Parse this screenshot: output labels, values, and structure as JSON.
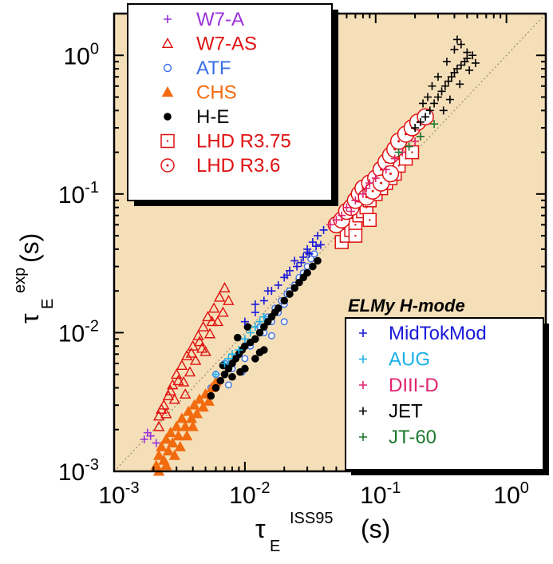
{
  "chart_data": {
    "type": "scatter",
    "title": "",
    "xlabel": {
      "main": "τ",
      "sub": "E",
      "sup": "ISS95",
      "unit": "(s)"
    },
    "ylabel": {
      "main": "τ",
      "sub": "E",
      "sup": "exp",
      "unit": "(s)"
    },
    "xscale": "log",
    "yscale": "log",
    "xlim": [
      0.001,
      2
    ],
    "ylim": [
      0.001,
      2
    ],
    "x_ticks": [
      {
        "value": 0.001,
        "base": "10",
        "exp": "-3"
      },
      {
        "value": 0.01,
        "base": "10",
        "exp": "-2"
      },
      {
        "value": 0.1,
        "base": "10",
        "exp": "-1"
      },
      {
        "value": 1,
        "base": "10",
        "exp": "0"
      }
    ],
    "y_ticks": [
      {
        "value": 0.001,
        "base": "10",
        "exp": "-3"
      },
      {
        "value": 0.01,
        "base": "10",
        "exp": "-2"
      },
      {
        "value": 0.1,
        "base": "10",
        "exp": "-1"
      },
      {
        "value": 1,
        "base": "10",
        "exp": "0"
      }
    ],
    "background_color": "#f5dfb8",
    "reference_line": "y = x (dotted)",
    "annotation": "ELMy H-mode",
    "legend_stellarator": {
      "placement": "top-left",
      "entries": [
        {
          "name": "W7-A",
          "marker": "plus",
          "color": "#9b30d9"
        },
        {
          "name": "W7-AS",
          "marker": "triangle-open",
          "color": "#e01010"
        },
        {
          "name": "ATF",
          "marker": "circle-open",
          "color": "#3a6fe8"
        },
        {
          "name": "CHS",
          "marker": "triangle-filled",
          "color": "#f26b0f"
        },
        {
          "name": "H-E",
          "marker": "circle-filled",
          "color": "#000000"
        },
        {
          "name": "LHD R3.75",
          "marker": "square-dot",
          "color": "#e01010"
        },
        {
          "name": "LHD R3.6",
          "marker": "circle-dot",
          "color": "#e01010"
        }
      ]
    },
    "legend_tokamak": {
      "placement": "bottom-right",
      "entries": [
        {
          "name": "MidTokMod",
          "marker": "plus",
          "color": "#1a1adb"
        },
        {
          "name": "AUG",
          "marker": "plus",
          "color": "#1ab0e8"
        },
        {
          "name": "DIII-D",
          "marker": "plus",
          "color": "#e0246e"
        },
        {
          "name": "JET",
          "marker": "plus",
          "color": "#000000"
        },
        {
          "name": "JT-60",
          "marker": "plus",
          "color": "#1e7a2e"
        }
      ]
    },
    "series": [
      {
        "name": "W7-A",
        "marker": "plus",
        "color": "#9b30d9",
        "points": [
          [
            0.0017,
            0.0017
          ],
          [
            0.0019,
            0.0018
          ],
          [
            0.0021,
            0.0016
          ],
          [
            0.0018,
            0.0019
          ]
        ]
      },
      {
        "name": "W7-AS",
        "marker": "triangle-open",
        "color": "#e01010",
        "points": [
          [
            0.0022,
            0.0025
          ],
          [
            0.0024,
            0.003
          ],
          [
            0.0026,
            0.0035
          ],
          [
            0.0028,
            0.0042
          ],
          [
            0.003,
            0.005
          ],
          [
            0.0033,
            0.0058
          ],
          [
            0.0036,
            0.0068
          ],
          [
            0.004,
            0.008
          ],
          [
            0.0044,
            0.0095
          ],
          [
            0.0048,
            0.011
          ],
          [
            0.0052,
            0.013
          ],
          [
            0.0058,
            0.015
          ],
          [
            0.0064,
            0.018
          ],
          [
            0.007,
            0.021
          ],
          [
            0.0022,
            0.0021
          ],
          [
            0.0025,
            0.0026
          ],
          [
            0.0029,
            0.0033
          ],
          [
            0.0034,
            0.0044
          ],
          [
            0.0038,
            0.0052
          ],
          [
            0.0042,
            0.0063
          ],
          [
            0.0047,
            0.0077
          ],
          [
            0.0054,
            0.0098
          ],
          [
            0.0062,
            0.012
          ],
          [
            0.0068,
            0.014
          ],
          [
            0.0023,
            0.0028
          ],
          [
            0.0027,
            0.0038
          ],
          [
            0.0031,
            0.0045
          ],
          [
            0.0035,
            0.0036
          ],
          [
            0.0039,
            0.0071
          ],
          [
            0.0045,
            0.0086
          ],
          [
            0.005,
            0.0073
          ],
          [
            0.0056,
            0.012
          ],
          [
            0.0075,
            0.017
          ]
        ]
      },
      {
        "name": "ATF",
        "marker": "circle-open",
        "color": "#3a6fe8",
        "points": [
          [
            0.0055,
            0.004
          ],
          [
            0.006,
            0.005
          ],
          [
            0.0065,
            0.0045
          ],
          [
            0.007,
            0.006
          ],
          [
            0.008,
            0.0055
          ],
          [
            0.009,
            0.007
          ],
          [
            0.01,
            0.0065
          ],
          [
            0.011,
            0.008
          ],
          [
            0.012,
            0.009
          ],
          [
            0.013,
            0.011
          ],
          [
            0.014,
            0.01
          ],
          [
            0.015,
            0.013
          ],
          [
            0.016,
            0.012
          ],
          [
            0.017,
            0.015
          ],
          [
            0.018,
            0.014
          ],
          [
            0.019,
            0.017
          ],
          [
            0.02,
            0.016
          ],
          [
            0.021,
            0.019
          ],
          [
            0.022,
            0.02
          ],
          [
            0.024,
            0.022
          ],
          [
            0.026,
            0.025
          ],
          [
            0.028,
            0.027
          ],
          [
            0.03,
            0.03
          ],
          [
            0.032,
            0.034
          ],
          [
            0.034,
            0.037
          ],
          [
            0.012,
            0.0065
          ],
          [
            0.0095,
            0.0052
          ],
          [
            0.0075,
            0.0042
          ],
          [
            0.016,
            0.0095
          ],
          [
            0.02,
            0.012
          ]
        ]
      },
      {
        "name": "CHS",
        "marker": "triangle-filled",
        "color": "#f26b0f",
        "points": [
          [
            0.0021,
            0.0011
          ],
          [
            0.0022,
            0.0013
          ],
          [
            0.0023,
            0.0015
          ],
          [
            0.0024,
            0.0012
          ],
          [
            0.0025,
            0.0017
          ],
          [
            0.0026,
            0.0014
          ],
          [
            0.0027,
            0.0019
          ],
          [
            0.0028,
            0.0016
          ],
          [
            0.003,
            0.0021
          ],
          [
            0.0031,
            0.0018
          ],
          [
            0.0033,
            0.0024
          ],
          [
            0.0035,
            0.0021
          ],
          [
            0.0037,
            0.0027
          ],
          [
            0.0039,
            0.0024
          ],
          [
            0.0041,
            0.003
          ],
          [
            0.0043,
            0.0026
          ],
          [
            0.0045,
            0.0033
          ],
          [
            0.0048,
            0.0029
          ],
          [
            0.005,
            0.0036
          ],
          [
            0.0053,
            0.0032
          ],
          [
            0.0056,
            0.004
          ],
          [
            0.006,
            0.0044
          ],
          [
            0.0022,
            0.001
          ],
          [
            0.0025,
            0.0011
          ],
          [
            0.0029,
            0.0013
          ],
          [
            0.0032,
            0.0015
          ],
          [
            0.0036,
            0.0018
          ],
          [
            0.004,
            0.0021
          ]
        ]
      },
      {
        "name": "H-E",
        "marker": "circle-filled",
        "color": "#000000",
        "points": [
          [
            0.0055,
            0.0035
          ],
          [
            0.006,
            0.004
          ],
          [
            0.0065,
            0.0045
          ],
          [
            0.007,
            0.005
          ],
          [
            0.0075,
            0.0055
          ],
          [
            0.008,
            0.006
          ],
          [
            0.0085,
            0.0065
          ],
          [
            0.009,
            0.007
          ],
          [
            0.0095,
            0.0075
          ],
          [
            0.01,
            0.008
          ],
          [
            0.011,
            0.0085
          ],
          [
            0.012,
            0.009
          ],
          [
            0.013,
            0.01
          ],
          [
            0.014,
            0.011
          ],
          [
            0.015,
            0.012
          ],
          [
            0.016,
            0.013
          ],
          [
            0.017,
            0.014
          ],
          [
            0.018,
            0.015
          ],
          [
            0.02,
            0.017
          ],
          [
            0.022,
            0.019
          ],
          [
            0.024,
            0.021
          ],
          [
            0.026,
            0.023
          ],
          [
            0.028,
            0.025
          ],
          [
            0.03,
            0.027
          ],
          [
            0.033,
            0.03
          ],
          [
            0.036,
            0.033
          ],
          [
            0.008,
            0.0048
          ],
          [
            0.01,
            0.0055
          ],
          [
            0.012,
            0.0065
          ],
          [
            0.014,
            0.0075
          ],
          [
            0.0068,
            0.0058
          ],
          [
            0.0088,
            0.0092
          ],
          [
            0.0105,
            0.011
          ],
          [
            0.013,
            0.0072
          ],
          [
            0.0092,
            0.0052
          ]
        ]
      },
      {
        "name": "LHD R3.75",
        "marker": "square-dot",
        "color": "#e01010",
        "points": [
          [
            0.055,
            0.045
          ],
          [
            0.06,
            0.05
          ],
          [
            0.065,
            0.055
          ],
          [
            0.07,
            0.06
          ],
          [
            0.075,
            0.07
          ],
          [
            0.08,
            0.075
          ],
          [
            0.085,
            0.08
          ],
          [
            0.09,
            0.09
          ],
          [
            0.1,
            0.1
          ],
          [
            0.11,
            0.11
          ],
          [
            0.12,
            0.12
          ],
          [
            0.13,
            0.13
          ],
          [
            0.14,
            0.14
          ],
          [
            0.15,
            0.16
          ],
          [
            0.17,
            0.18
          ],
          [
            0.19,
            0.2
          ],
          [
            0.07,
            0.05
          ],
          [
            0.09,
            0.065
          ]
        ]
      },
      {
        "name": "LHD R3.6",
        "marker": "circle-dot",
        "color": "#e01010",
        "points": [
          [
            0.05,
            0.06
          ],
          [
            0.055,
            0.065
          ],
          [
            0.06,
            0.075
          ],
          [
            0.065,
            0.08
          ],
          [
            0.07,
            0.09
          ],
          [
            0.075,
            0.1
          ],
          [
            0.08,
            0.11
          ],
          [
            0.09,
            0.12
          ],
          [
            0.1,
            0.13
          ],
          [
            0.11,
            0.15
          ],
          [
            0.12,
            0.17
          ],
          [
            0.13,
            0.19
          ],
          [
            0.14,
            0.21
          ],
          [
            0.15,
            0.24
          ],
          [
            0.17,
            0.27
          ],
          [
            0.19,
            0.3
          ],
          [
            0.21,
            0.33
          ],
          [
            0.24,
            0.36
          ],
          [
            0.085,
            0.095
          ],
          [
            0.095,
            0.105
          ],
          [
            0.11,
            0.12
          ],
          [
            0.13,
            0.14
          ]
        ]
      },
      {
        "name": "MidTokMod",
        "marker": "plus",
        "color": "#1a1adb",
        "points": [
          [
            0.01,
            0.012
          ],
          [
            0.012,
            0.014
          ],
          [
            0.014,
            0.017
          ],
          [
            0.016,
            0.02
          ],
          [
            0.018,
            0.022
          ],
          [
            0.02,
            0.025
          ],
          [
            0.022,
            0.028
          ],
          [
            0.025,
            0.03
          ],
          [
            0.028,
            0.035
          ],
          [
            0.03,
            0.04
          ],
          [
            0.033,
            0.045
          ],
          [
            0.036,
            0.05
          ],
          [
            0.04,
            0.055
          ],
          [
            0.024,
            0.033
          ],
          [
            0.03,
            0.038
          ],
          [
            0.035,
            0.042
          ],
          [
            0.012,
            0.016
          ],
          [
            0.015,
            0.02
          ],
          [
            0.021,
            0.026
          ],
          [
            0.027,
            0.032
          ],
          [
            0.031,
            0.037
          ],
          [
            0.038,
            0.043
          ]
        ]
      },
      {
        "name": "AUG",
        "marker": "plus",
        "color": "#1ab0e8",
        "points": [
          [
            0.006,
            0.005
          ],
          [
            0.007,
            0.006
          ],
          [
            0.008,
            0.007
          ],
          [
            0.009,
            0.0075
          ],
          [
            0.01,
            0.009
          ],
          [
            0.011,
            0.01
          ],
          [
            0.012,
            0.011
          ],
          [
            0.013,
            0.012
          ],
          [
            0.014,
            0.013
          ],
          [
            0.0075,
            0.0065
          ]
        ]
      },
      {
        "name": "DIII-D",
        "marker": "plus",
        "color": "#e0246e",
        "points": [
          [
            0.045,
            0.06
          ],
          [
            0.05,
            0.065
          ],
          [
            0.055,
            0.07
          ],
          [
            0.06,
            0.08
          ],
          [
            0.07,
            0.09
          ],
          [
            0.08,
            0.1
          ],
          [
            0.09,
            0.12
          ],
          [
            0.1,
            0.13
          ],
          [
            0.12,
            0.15
          ],
          [
            0.14,
            0.18
          ],
          [
            0.16,
            0.2
          ],
          [
            0.18,
            0.22
          ],
          [
            0.2,
            0.24
          ],
          [
            0.22,
            0.26
          ],
          [
            0.065,
            0.075
          ],
          [
            0.085,
            0.11
          ]
        ]
      },
      {
        "name": "JET",
        "marker": "plus",
        "color": "#000000",
        "points": [
          [
            0.2,
            0.3
          ],
          [
            0.22,
            0.33
          ],
          [
            0.24,
            0.36
          ],
          [
            0.26,
            0.4
          ],
          [
            0.28,
            0.45
          ],
          [
            0.3,
            0.5
          ],
          [
            0.32,
            0.55
          ],
          [
            0.34,
            0.6
          ],
          [
            0.36,
            0.65
          ],
          [
            0.38,
            0.7
          ],
          [
            0.4,
            0.75
          ],
          [
            0.42,
            0.8
          ],
          [
            0.45,
            0.85
          ],
          [
            0.48,
            0.9
          ],
          [
            0.5,
            0.95
          ],
          [
            0.55,
            1.0
          ],
          [
            0.35,
            0.9
          ],
          [
            0.4,
            1.1
          ],
          [
            0.42,
            1.3
          ],
          [
            0.45,
            1.2
          ],
          [
            0.5,
            1.05
          ],
          [
            0.3,
            0.7
          ],
          [
            0.27,
            0.6
          ],
          [
            0.25,
            0.5
          ],
          [
            0.23,
            0.45
          ],
          [
            0.33,
            0.4
          ],
          [
            0.37,
            0.48
          ],
          [
            0.44,
            0.62
          ],
          [
            0.52,
            0.78
          ],
          [
            0.58,
            0.88
          ]
        ]
      },
      {
        "name": "JT-60",
        "marker": "plus",
        "color": "#1e7a2e",
        "points": [
          [
            0.15,
            0.2
          ],
          [
            0.18,
            0.22
          ],
          [
            0.22,
            0.26
          ],
          [
            0.28,
            0.32
          ]
        ]
      }
    ]
  }
}
